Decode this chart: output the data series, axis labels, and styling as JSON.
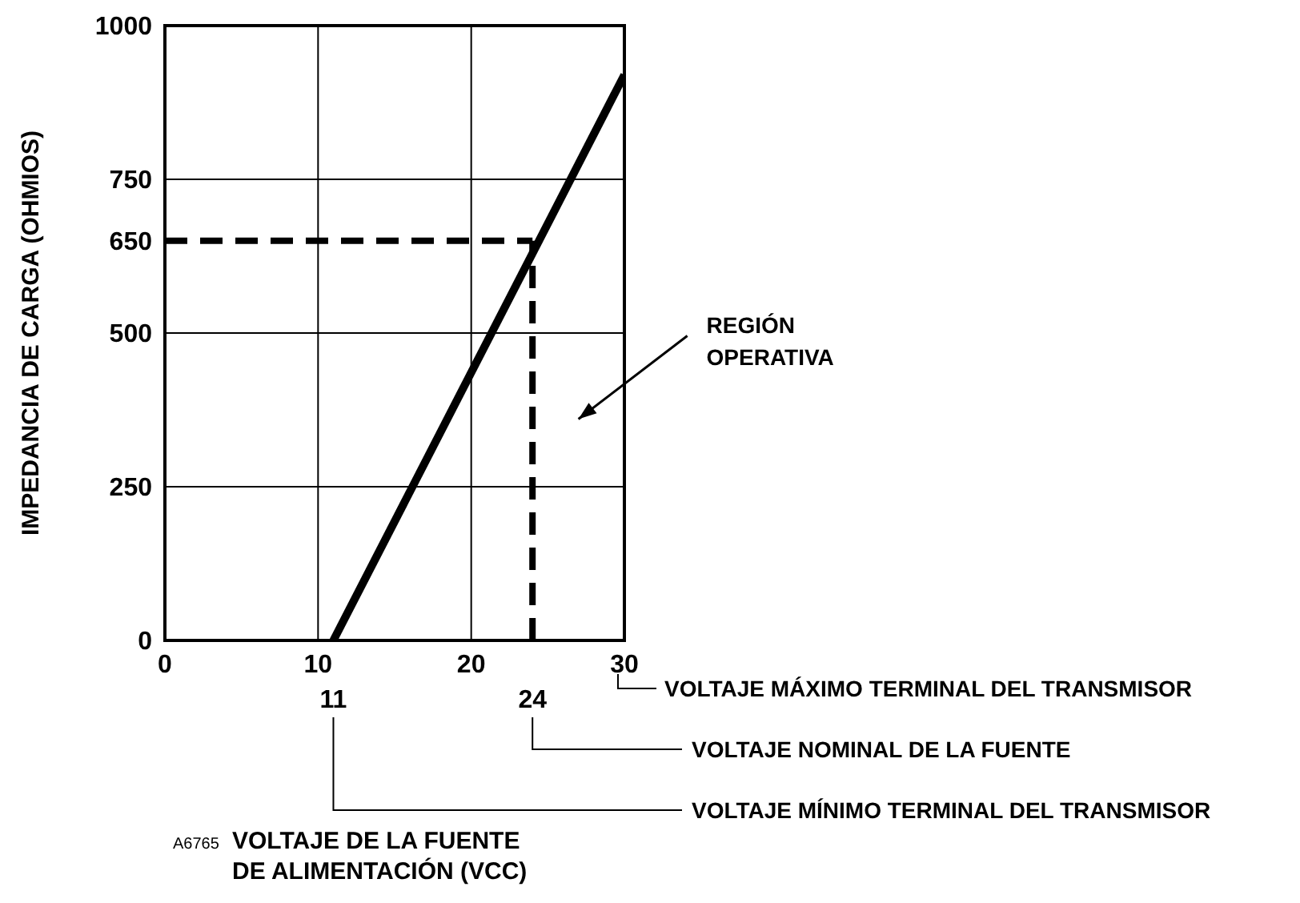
{
  "chart_data": {
    "type": "line",
    "ylabel": "IMPEDANCIA DE CARGA (OHMIOS)",
    "x": [
      11,
      30
    ],
    "series": [
      {
        "color": "#000000",
        "values": [
          0,
          920
        ]
      }
    ],
    "xlim": [
      0,
      30
    ],
    "xticks": [
      0,
      10,
      20,
      30
    ],
    "ylim": [
      0,
      1000
    ],
    "yticks": [
      0,
      250,
      500,
      650,
      750,
      1000
    ],
    "grid": true,
    "marker": "none",
    "line_style": "solid",
    "ref_lines": [
      {
        "axis": "x",
        "value": 24,
        "color": "#000000",
        "line_style": "dashed"
      },
      {
        "axis": "y",
        "value": 650,
        "color": "#000000",
        "line_style": "dashed"
      }
    ],
    "annotations": [
      "VOLTAJE MÁXIMO TERMINAL DEL TRANSMISOR",
      "24",
      "VOLTAJE NOMINAL DE LA FUENTE",
      "11",
      "VOLTAJE MÍNIMO TERMINAL DEL TRANSMISOR",
      "REGIÓN OPERATIVA",
      "A6765",
      "VOLTAJE DE LA FUENTE DE ALIMENTACIÓN (VCC)"
    ]
  }
}
